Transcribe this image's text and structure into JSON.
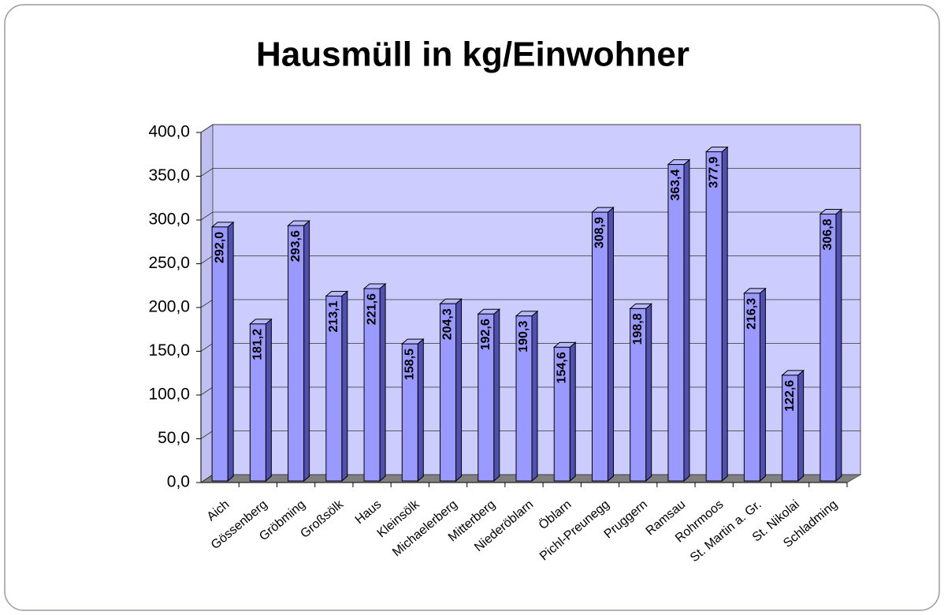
{
  "chart_data": {
    "type": "bar3d",
    "title": "Hausmüll in kg/Einwohner",
    "categories": [
      "Aich",
      "Gössenberg",
      "Gröbming",
      "Großsölk",
      "Haus",
      "Kleinsölk",
      "Michaelerberg",
      "Mitterberg",
      "Niederöblarn",
      "Öblarn",
      "Pichl-Preunegg",
      "Pruggern",
      "Ramsau",
      "Rohrmoos",
      "St. Martin a. Gr.",
      "St. Nikolai",
      "Schladming"
    ],
    "values": [
      292.0,
      181.2,
      293.6,
      213.1,
      221.6,
      158.5,
      204.3,
      192.6,
      190.3,
      154.6,
      308.9,
      198.8,
      363.4,
      377.9,
      216.3,
      122.6,
      306.8
    ],
    "value_labels": [
      "292,0",
      "181,2",
      "293,6",
      "213,1",
      "221,6",
      "158,5",
      "204,3",
      "192,6",
      "190,3",
      "154,6",
      "308,9",
      "198,8",
      "363,4",
      "377,9",
      "216,3",
      "122,6",
      "306,8"
    ],
    "color": "#9999ff",
    "ylim": [
      0,
      400
    ],
    "yticks": [
      {
        "value": 0,
        "label": "0,0"
      },
      {
        "value": 50,
        "label": "50,0"
      },
      {
        "value": 100,
        "label": "100,0"
      },
      {
        "value": 150,
        "label": "150,0"
      },
      {
        "value": 200,
        "label": "200,0"
      },
      {
        "value": 250,
        "label": "250,0"
      },
      {
        "value": 300,
        "label": "300,0"
      },
      {
        "value": 350,
        "label": "350,0"
      },
      {
        "value": 400,
        "label": "400,0"
      }
    ],
    "grid": true
  }
}
